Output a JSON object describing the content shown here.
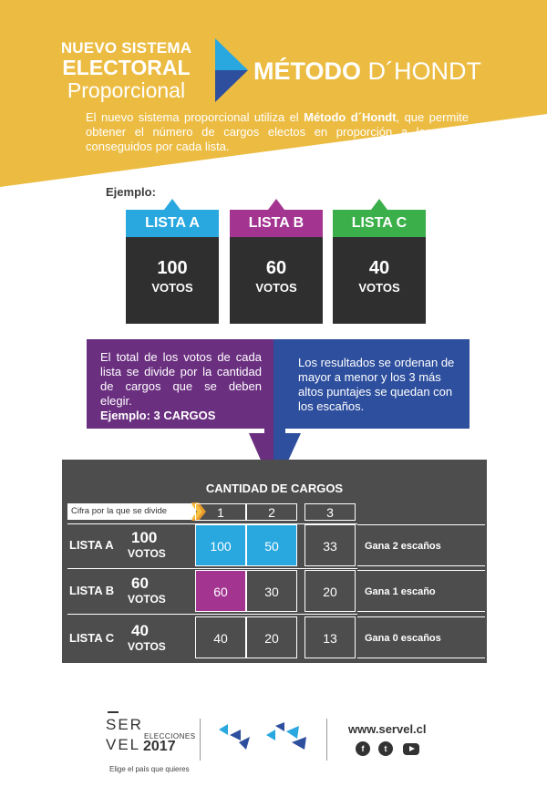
{
  "colors": {
    "yellow": "#ecbc42",
    "blue_light": "#29a8e0",
    "magenta": "#a33591",
    "green": "#3bb04a",
    "purple": "#6b2f80",
    "navy": "#2e4f9e",
    "dark": "#2f2f2f",
    "table_bg": "#4d4d4d"
  },
  "header": {
    "brand_line1": "NUEVO SISTEMA",
    "brand_line2": "ELECTORAL",
    "brand_line3": "Proporcional",
    "metodo_bold": "MÉTODO",
    "metodo_rest": " D´HONDT",
    "intro_part1": "El nuevo sistema proporcional utiliza el ",
    "intro_bold": "Método d´Hondt",
    "intro_part2": ", que permite obtener el número de cargos electos en proporción a los votos conseguidos por cada lista."
  },
  "ejemplo_label": "Ejemplo:",
  "listas": [
    {
      "name": "LISTA A",
      "votes": "100",
      "votes_label": "VOTOS",
      "color": "#29a8e0"
    },
    {
      "name": "LISTA B",
      "votes": "60",
      "votes_label": "VOTOS",
      "color": "#a33591"
    },
    {
      "name": "LISTA C",
      "votes": "40",
      "votes_label": "VOTOS",
      "color": "#3bb04a"
    }
  ],
  "explanation": {
    "left_text": "El total de los votos de cada lista se divide por la cantidad de cargos que se deben elegir.",
    "left_bold": "Ejemplo: 3 CARGOS",
    "right_text": "Los resultados se ordenan de mayor a menor y los 3 más altos puntajes se quedan con los escaños."
  },
  "table": {
    "title": "CANTIDAD DE CARGOS",
    "divisor_label": "Cifra por la que se divide",
    "columns": [
      "1",
      "2",
      "3"
    ],
    "rows": [
      {
        "name": "LISTA A",
        "votes": "100",
        "votes_label": "VOTOS",
        "cells": [
          "100",
          "50",
          "33"
        ],
        "result": "Gana 2 escaños"
      },
      {
        "name": "LISTA B",
        "votes": "60",
        "votes_label": "VOTOS",
        "cells": [
          "60",
          "30",
          "20"
        ],
        "result": "Gana 1 escaño"
      },
      {
        "name": "LISTA C",
        "votes": "40",
        "votes_label": "VOTOS",
        "cells": [
          "40",
          "20",
          "13"
        ],
        "result": "Gana 0 escaños"
      }
    ]
  },
  "footer": {
    "servel_line1": "SER",
    "servel_line2": "VEL",
    "elecciones": "ELECCIONES",
    "year": "2017",
    "slogan": "Elige el país que quieres",
    "website": "www.servel.cl",
    "social_icons": [
      "facebook-icon",
      "twitter-icon",
      "youtube-icon"
    ]
  }
}
